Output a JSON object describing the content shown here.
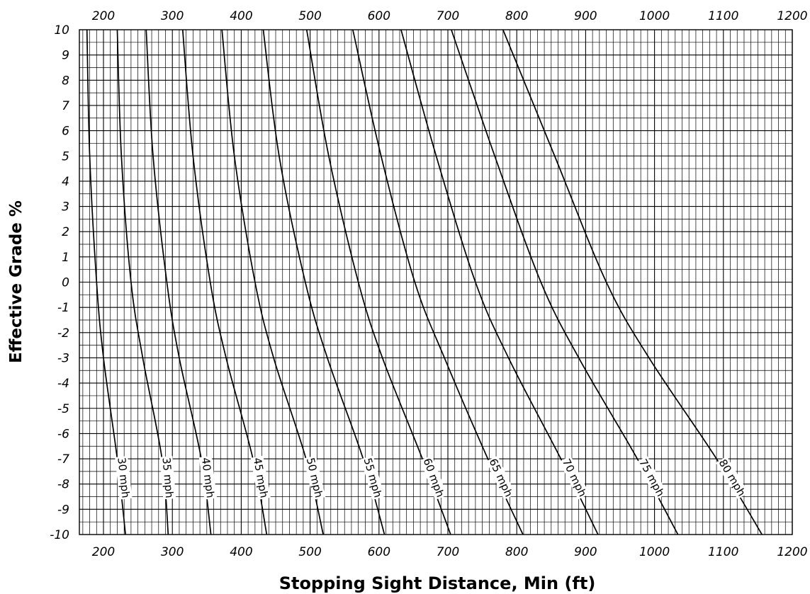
{
  "chart_data": {
    "type": "line",
    "xlabel": "Stopping  Sight Distance, Min  (ft)",
    "ylabel": "Effective  Grade  %",
    "xlim": [
      165,
      1200
    ],
    "ylim": [
      -10,
      10
    ],
    "x_ticks": [
      200,
      300,
      400,
      500,
      600,
      700,
      800,
      900,
      1000,
      1100,
      1200
    ],
    "y_ticks": [
      10,
      9,
      8,
      7,
      6,
      5,
      4,
      3,
      2,
      1,
      0,
      -1,
      -2,
      -3,
      -4,
      -5,
      -6,
      -7,
      -8,
      -9,
      -10
    ],
    "grid": true,
    "x_axis_top": true,
    "series": [
      {
        "name": "30 mph",
        "x": [
          176,
          180,
          190,
          200,
          220,
          232
        ],
        "y": [
          10,
          5,
          0,
          -3,
          -7,
          -10
        ]
      },
      {
        "name": "35 mph",
        "x": [
          220,
          226,
          240,
          257,
          285,
          294
        ],
        "y": [
          10,
          5,
          0,
          -3,
          -7,
          -10
        ]
      },
      {
        "name": "40 mph",
        "x": [
          262,
          272,
          292,
          310,
          342,
          356
        ],
        "y": [
          10,
          5,
          0,
          -3,
          -7,
          -10
        ]
      },
      {
        "name": "45 mph",
        "x": [
          315,
          330,
          355,
          378,
          417,
          437
        ],
        "y": [
          10,
          5,
          0,
          -3,
          -7,
          -10
        ]
      },
      {
        "name": "50 mph",
        "x": [
          372,
          390,
          420,
          447,
          494,
          519
        ],
        "y": [
          10,
          5,
          0,
          -3,
          -7,
          -10
        ]
      },
      {
        "name": "55 mph",
        "x": [
          432,
          455,
          493,
          525,
          577,
          608
        ],
        "y": [
          10,
          5,
          0,
          -3,
          -7,
          -10
        ]
      },
      {
        "name": "60 mph",
        "x": [
          495,
          527,
          570,
          605,
          663,
          704
        ],
        "y": [
          10,
          5,
          0,
          -3,
          -7,
          -10
        ]
      },
      {
        "name": "65 mph",
        "x": [
          562,
          603,
          652,
          695,
          758,
          809
        ],
        "y": [
          10,
          5,
          0,
          -3,
          -7,
          -10
        ]
      },
      {
        "name": "70 mph",
        "x": [
          632,
          683,
          740,
          788,
          864,
          918
        ],
        "y": [
          10,
          5,
          0,
          -3,
          -7,
          -10
        ]
      },
      {
        "name": "75 mph",
        "x": [
          705,
          768,
          835,
          890,
          975,
          1034
        ],
        "y": [
          10,
          5,
          0,
          -3,
          -7,
          -10
        ]
      },
      {
        "name": "80 mph",
        "x": [
          780,
          855,
          930,
          992,
          1090,
          1156
        ],
        "y": [
          10,
          5,
          0,
          -3,
          -7,
          -10
        ]
      }
    ]
  }
}
